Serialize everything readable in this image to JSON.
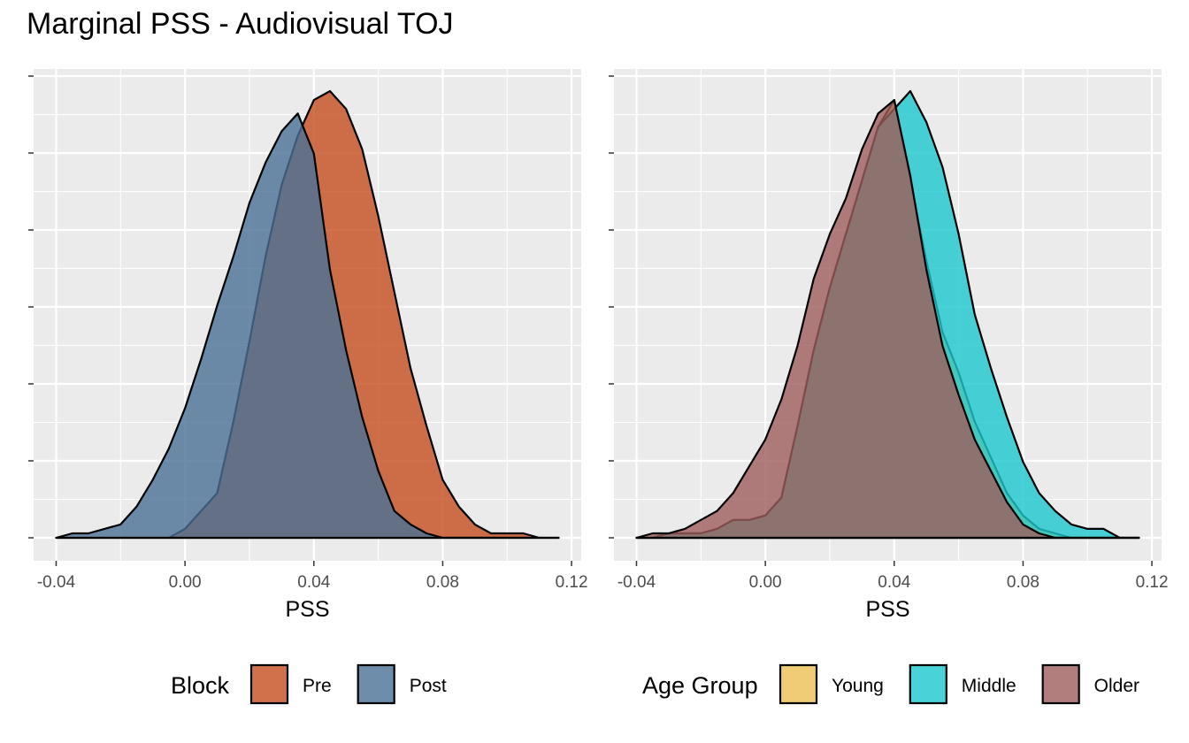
{
  "title": "Marginal PSS - Audiovisual TOJ",
  "chart_data": [
    {
      "type": "area",
      "subtype": "density",
      "xlabel": "PSS",
      "ylabel": "",
      "xlim": [
        -0.047,
        0.123
      ],
      "xticks": [
        -0.04,
        0.0,
        0.04,
        0.08,
        0.12
      ],
      "xtick_labels": [
        "-0.04",
        "0.00",
        "0.04",
        "0.08",
        "0.12"
      ],
      "y_tick_labels_shown": false,
      "grid": true,
      "legend": {
        "title": "Block",
        "position": "bottom"
      },
      "series": [
        {
          "name": "Pre",
          "color": "#C44E1E",
          "x": [
            -0.04,
            -0.035,
            -0.03,
            -0.025,
            -0.02,
            -0.015,
            -0.01,
            -0.005,
            0.0,
            0.005,
            0.01,
            0.015,
            0.02,
            0.025,
            0.03,
            0.035,
            0.04,
            0.045,
            0.05,
            0.055,
            0.06,
            0.065,
            0.07,
            0.075,
            0.08,
            0.085,
            0.09,
            0.095,
            0.1,
            0.105,
            0.11,
            0.116
          ],
          "y": [
            0,
            0,
            0,
            0,
            0,
            0,
            0,
            0,
            0.02,
            0.06,
            0.1,
            0.26,
            0.44,
            0.63,
            0.79,
            0.9,
            0.98,
            1.0,
            0.96,
            0.87,
            0.72,
            0.55,
            0.38,
            0.25,
            0.13,
            0.07,
            0.03,
            0.01,
            0.01,
            0.01,
            0,
            0
          ]
        },
        {
          "name": "Post",
          "color": "#4A7096",
          "x": [
            -0.04,
            -0.035,
            -0.03,
            -0.025,
            -0.02,
            -0.015,
            -0.01,
            -0.005,
            0.0,
            0.005,
            0.01,
            0.015,
            0.02,
            0.025,
            0.03,
            0.035,
            0.04,
            0.045,
            0.05,
            0.055,
            0.06,
            0.065,
            0.07,
            0.075,
            0.08,
            0.085,
            0.09,
            0.095,
            0.1,
            0.105,
            0.11,
            0.116
          ],
          "y": [
            0,
            0.01,
            0.01,
            0.02,
            0.03,
            0.07,
            0.13,
            0.2,
            0.29,
            0.4,
            0.52,
            0.63,
            0.75,
            0.84,
            0.91,
            0.95,
            0.86,
            0.6,
            0.42,
            0.27,
            0.15,
            0.06,
            0.03,
            0.01,
            0,
            0,
            0,
            0,
            0,
            0,
            0,
            0
          ]
        }
      ]
    },
    {
      "type": "area",
      "subtype": "density",
      "xlabel": "PSS",
      "ylabel": "",
      "xlim": [
        -0.047,
        0.123
      ],
      "xticks": [
        -0.04,
        0.0,
        0.04,
        0.08,
        0.12
      ],
      "xtick_labels": [
        "-0.04",
        "0.00",
        "0.04",
        "0.08",
        "0.12"
      ],
      "y_tick_labels_shown": false,
      "grid": true,
      "legend": {
        "title": "Age Group",
        "position": "bottom"
      },
      "series": [
        {
          "name": "Young",
          "color": "#EBBF52",
          "x": [
            -0.04,
            -0.035,
            -0.03,
            -0.025,
            -0.02,
            -0.015,
            -0.01,
            -0.005,
            0.0,
            0.005,
            0.01,
            0.015,
            0.02,
            0.025,
            0.03,
            0.035,
            0.04,
            0.045,
            0.05,
            0.055,
            0.06,
            0.065,
            0.07,
            0.075,
            0.08,
            0.085,
            0.09,
            0.095,
            0.1,
            0.105,
            0.11,
            0.116
          ],
          "y": [
            0,
            0,
            0.01,
            0.01,
            0.01,
            0.02,
            0.04,
            0.04,
            0.05,
            0.09,
            0.25,
            0.42,
            0.56,
            0.68,
            0.8,
            0.92,
            0.98,
            0.8,
            0.62,
            0.46,
            0.37,
            0.26,
            0.18,
            0.1,
            0.05,
            0.02,
            0.01,
            0,
            0,
            0,
            0,
            0
          ]
        },
        {
          "name": "Middle",
          "color": "#1CC8CF",
          "x": [
            -0.04,
            -0.035,
            -0.03,
            -0.025,
            -0.02,
            -0.015,
            -0.01,
            -0.005,
            0.0,
            0.005,
            0.01,
            0.015,
            0.02,
            0.025,
            0.03,
            0.035,
            0.04,
            0.045,
            0.05,
            0.055,
            0.06,
            0.065,
            0.07,
            0.075,
            0.08,
            0.085,
            0.09,
            0.095,
            0.1,
            0.105,
            0.11,
            0.116
          ],
          "y": [
            0,
            0,
            0.01,
            0.01,
            0.01,
            0.02,
            0.04,
            0.04,
            0.05,
            0.09,
            0.25,
            0.42,
            0.56,
            0.68,
            0.8,
            0.92,
            0.96,
            1.0,
            0.93,
            0.83,
            0.68,
            0.5,
            0.38,
            0.27,
            0.17,
            0.1,
            0.06,
            0.03,
            0.02,
            0.02,
            0,
            0
          ]
        },
        {
          "name": "Older",
          "color": "#9E5E5C",
          "x": [
            -0.04,
            -0.035,
            -0.03,
            -0.025,
            -0.02,
            -0.015,
            -0.01,
            -0.005,
            0.0,
            0.005,
            0.01,
            0.015,
            0.02,
            0.025,
            0.03,
            0.035,
            0.04,
            0.045,
            0.05,
            0.055,
            0.06,
            0.065,
            0.07,
            0.075,
            0.08,
            0.085,
            0.09,
            0.095,
            0.1,
            0.105,
            0.11,
            0.116
          ],
          "y": [
            0,
            0.01,
            0.01,
            0.02,
            0.04,
            0.06,
            0.1,
            0.16,
            0.22,
            0.31,
            0.43,
            0.58,
            0.68,
            0.76,
            0.87,
            0.95,
            0.98,
            0.81,
            0.6,
            0.43,
            0.32,
            0.22,
            0.15,
            0.08,
            0.03,
            0.01,
            0,
            0,
            0,
            0,
            0,
            0
          ]
        }
      ]
    }
  ]
}
